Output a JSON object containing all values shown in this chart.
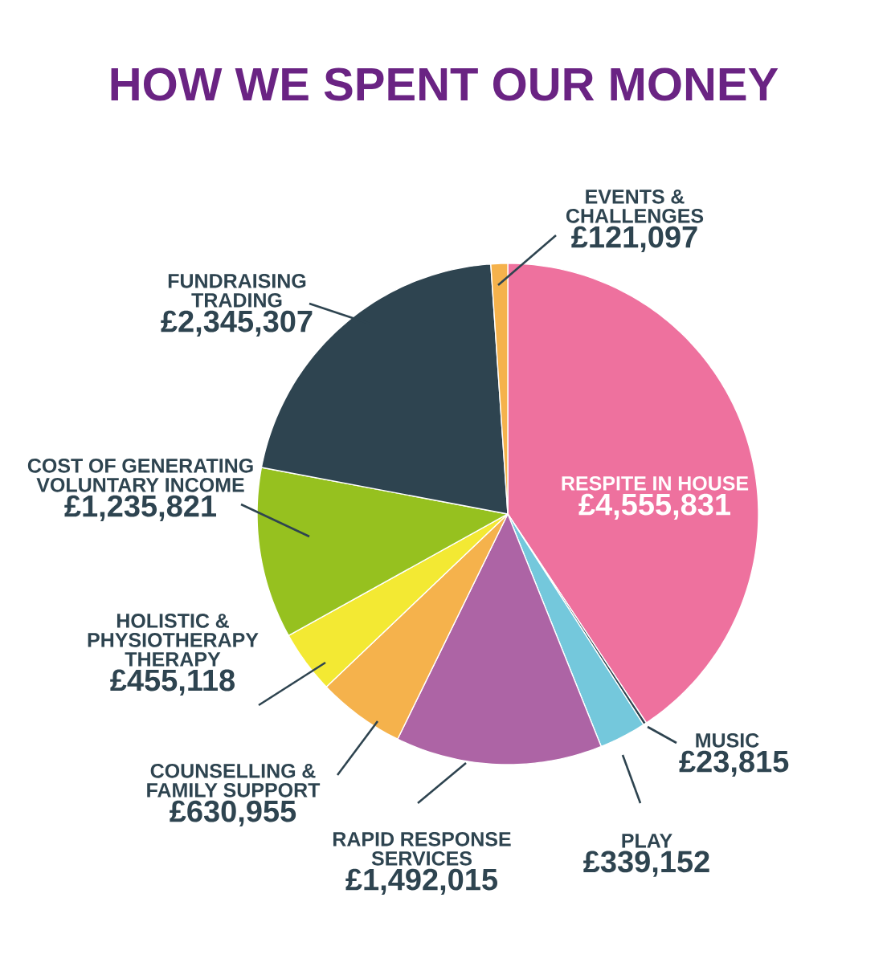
{
  "chart_data": {
    "type": "pie",
    "title": "HOW WE SPENT OUR MONEY",
    "categories": [
      "RESPITE IN HOUSE",
      "MUSIC",
      "PLAY",
      "RAPID RESPONSE SERVICES",
      "COUNSELLING & FAMILY SUPPORT",
      "HOLISTIC & PHYSIOTHERAPY THERAPY",
      "COST OF GENERATING VOLUNTARY INCOME",
      "FUNDRAISING TRADING",
      "EVENTS & CHALLENGES"
    ],
    "values": [
      4555831,
      23815,
      339152,
      1492015,
      630955,
      455118,
      1235821,
      2345307,
      121097
    ],
    "value_labels": [
      "£4,555,831",
      "£23,815",
      "£339,152",
      "£1,492,015",
      "£630,955",
      "£455,118",
      "£1,235,821",
      "£2,345,307",
      "£121,097"
    ],
    "colors": [
      "#ee719e",
      "#2e4450",
      "#74c8dc",
      "#ad64a5",
      "#f5b24c",
      "#f3e933",
      "#96c11f",
      "#2e4450",
      "#f5b24c"
    ]
  }
}
